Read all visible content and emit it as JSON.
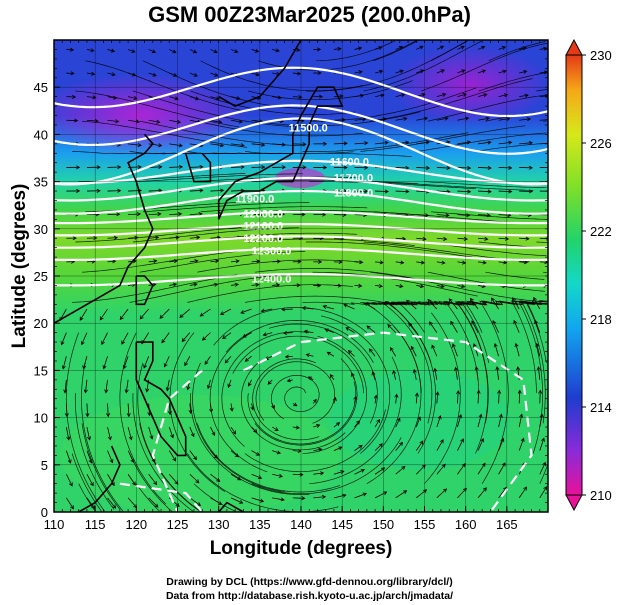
{
  "title": "GSM 00Z23Mar2025 (200.0hPa)",
  "x_axis": {
    "label": "Longitude (degrees)",
    "range": [
      110,
      170
    ],
    "ticks": [
      "110",
      "115",
      "120",
      "125",
      "130",
      "135",
      "140",
      "145",
      "150",
      "155",
      "160",
      "165"
    ]
  },
  "y_axis": {
    "label": "Latitude  (degrees)",
    "range": [
      0,
      50
    ],
    "ticks": [
      "0",
      "5",
      "10",
      "15",
      "20",
      "25",
      "30",
      "35",
      "40",
      "45"
    ]
  },
  "colorbar": {
    "labels": [
      "230",
      "226",
      "222",
      "218",
      "214",
      "210"
    ],
    "range": [
      210,
      230
    ],
    "colors": [
      "#e8119a",
      "#8a2bd8",
      "#1f3ccf",
      "#11a7ee",
      "#13d8c8",
      "#22d36a",
      "#7fe028",
      "#d6e81a",
      "#f5a818",
      "#e43a18"
    ]
  },
  "contours": [
    {
      "label": "11500.0",
      "lon": 138.5,
      "lat": 40.3
    },
    {
      "label": "11600.0",
      "lon": 143.5,
      "lat": 36.7
    },
    {
      "label": "11700.0",
      "lon": 144.0,
      "lat": 35.0
    },
    {
      "label": "11800.0",
      "lon": 144.0,
      "lat": 33.4
    },
    {
      "label": "11900.0",
      "lon": 132.0,
      "lat": 32.8
    },
    {
      "label": "12000.0",
      "lon": 133.0,
      "lat": 31.2
    },
    {
      "label": "12100.0",
      "lon": 133.0,
      "lat": 29.9
    },
    {
      "label": "12200.0",
      "lon": 133.0,
      "lat": 28.6
    },
    {
      "label": "12300.0",
      "lon": 134.0,
      "lat": 27.3
    },
    {
      "label": "12400.0",
      "lon": 134.0,
      "lat": 24.3
    }
  ],
  "credits": {
    "line1": "Drawing by DCL (https://www.gfd-dennou.org/library/dcl/)",
    "line2": "Data from http://database.rish.kyoto-u.ac.jp/arch/jmadata/"
  }
}
